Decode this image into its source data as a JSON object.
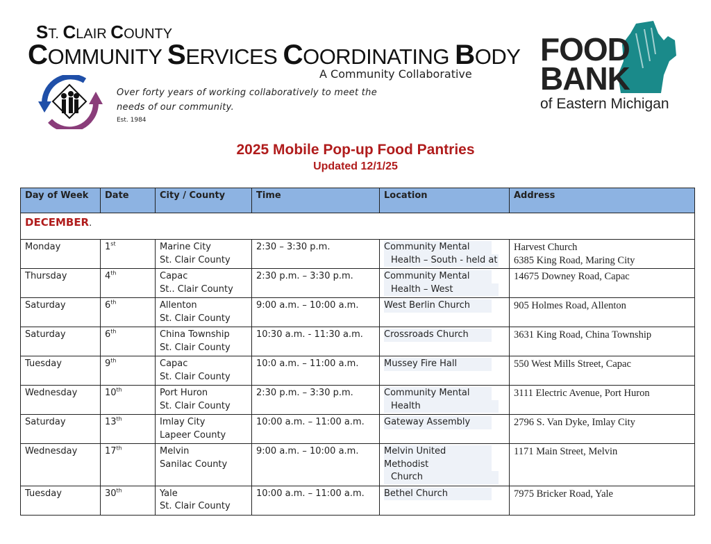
{
  "header": {
    "org_line1": "St. Clair County",
    "org_line2": "Community Services Coordinating Body",
    "collab": "A Community Collaborative",
    "tagline": "Over forty years of working collaboratively to meet the needs of our community.",
    "est": "Est. 1984",
    "foodbank_logo": {
      "word": "FOOD BANK",
      "sub": "of Eastern Michigan",
      "color": "#1a8a8a"
    }
  },
  "title": "2025 Mobile Pop-up Food Pantries",
  "subtitle": "Updated 12/1/25",
  "table": {
    "columns": [
      "Day of Week",
      "Date",
      "City / County",
      "Time",
      "Location",
      "Address"
    ],
    "month": "DECEMBER",
    "rows": [
      {
        "day": "Monday",
        "date": "1",
        "suffix": "st",
        "city": "Marine City",
        "county": "St. Clair County",
        "time": "2:30 – 3:30 p.m.",
        "loc1": "Community Mental",
        "loc2": "Health – South - held at",
        "addr1": "Harvest Church",
        "addr2": "6385 King Road, Maring City"
      },
      {
        "day": "Thursday",
        "date": "4",
        "suffix": "th",
        "city": "Capac",
        "county": "St.. Clair County",
        "time": "2:30 p.m. – 3:30 p.m.",
        "loc1": "Community Mental",
        "loc2": "Health – West",
        "addr1": "14675 Downey Road, Capac",
        "addr2": ""
      },
      {
        "day": "Saturday",
        "date": "6",
        "suffix": "th",
        "city": "Allenton",
        "county": "St. Clair County",
        "time": "9:00 a.m. – 10:00 a.m.",
        "loc1": "West Berlin Church",
        "loc2": "",
        "addr1": "905 Holmes Road, Allenton",
        "addr2": ""
      },
      {
        "day": "Saturday",
        "date": "6",
        "suffix": "th",
        "city": "China Township",
        "county": "St. Clair County",
        "time": "10:30 a.m. - 11:30 a.m.",
        "loc1": "Crossroads Church",
        "loc2": "",
        "addr1": "3631 King Road, China Township",
        "addr2": ""
      },
      {
        "day": "Tuesday",
        "date": "9",
        "suffix": "th",
        "city": "Capac",
        "county": "St. Clair County",
        "time": "10:0 a.m. – 11:00 a.m.",
        "loc1": "Mussey Fire Hall",
        "loc2": "",
        "addr1": "550 West Mills Street, Capac",
        "addr2": ""
      },
      {
        "day": "Wednesday",
        "date": "10",
        "suffix": "th",
        "city": "Port Huron",
        "county": "St. Clair County",
        "time": "2:30 p.m. – 3:30 p.m.",
        "loc1": "Community Mental",
        "loc2": "Health",
        "addr1": "3111 Electric Avenue, Port Huron",
        "addr2": ""
      },
      {
        "day": "Saturday",
        "date": "13",
        "suffix": "th",
        "city": "Imlay City",
        "county": "Lapeer County",
        "time": "10:00 a.m. – 11:00 a.m.",
        "loc1": "Gateway Assembly",
        "loc2": "",
        "addr1": "2796 S. Van Dyke, Imlay City",
        "addr2": ""
      },
      {
        "day": "Wednesday",
        "date": "17",
        "suffix": "th",
        "city": "Melvin",
        "county": "Sanilac County",
        "time": "9:00 a.m. – 10:00 a.m.",
        "loc1": "Melvin United Methodist",
        "loc2": "Church",
        "addr1": "1171 Main Street, Melvin",
        "addr2": ""
      },
      {
        "day": "Tuesday",
        "date": "30",
        "suffix": "th",
        "city": "Yale",
        "county": "St. Clair County",
        "time": "10:00 a.m. – 11:00 a.m.",
        "loc1": "Bethel Church",
        "loc2": "",
        "addr1": "7975 Bricker Road, Yale",
        "addr2": ""
      }
    ]
  }
}
